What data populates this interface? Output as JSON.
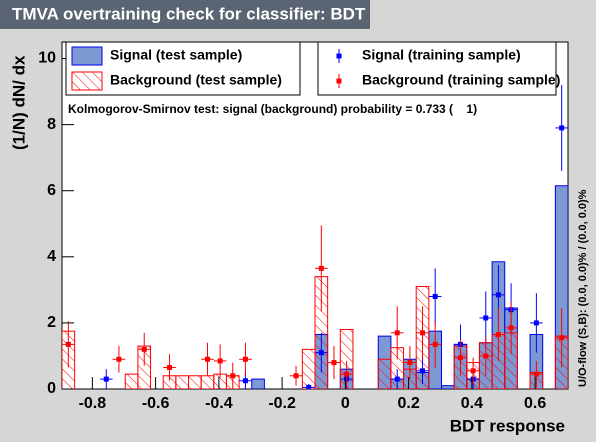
{
  "chart_data": {
    "type": "histogram",
    "title": "TMVA overtraining check for classifier: BDT",
    "x_label": "BDT response",
    "y_label": "(1/N) dN/ dx",
    "annotation": "Kolmogorov-Smirnov test: signal (background) probability = 0.733 (    1)",
    "side_note": "U/O-flow (S,B): (0.0, 0.0)% / (0.0, 0.0)%",
    "bins": [
      -0.896,
      -0.856,
      -0.816,
      -0.776,
      -0.736,
      -0.696,
      -0.656,
      -0.616,
      -0.576,
      -0.536,
      -0.496,
      -0.456,
      -0.416,
      -0.376,
      -0.336,
      -0.296,
      -0.256,
      -0.216,
      -0.176,
      -0.136,
      -0.096,
      -0.056,
      -0.016,
      0.024,
      0.064,
      0.104,
      0.144,
      0.184,
      0.224,
      0.264,
      0.304,
      0.344,
      0.384,
      0.424,
      0.464,
      0.504,
      0.544,
      0.584,
      0.624,
      0.664,
      0.704
    ],
    "xlim": [
      -0.896,
      0.704
    ],
    "ylim": [
      0,
      10.5
    ],
    "xticks": [
      -0.8,
      -0.6,
      -0.4,
      -0.2,
      0,
      0.2,
      0.4,
      0.6
    ],
    "yticks": [
      0,
      2,
      4,
      6,
      8,
      10
    ],
    "series": [
      {
        "name": "Signal (test sample)",
        "style": "filled",
        "color": "#0000ee",
        "fill": "#7d99d1",
        "values": [
          0,
          0,
          0,
          0,
          0,
          0,
          0,
          0,
          0,
          0,
          0,
          0,
          0,
          0,
          0,
          0.3,
          0,
          0,
          0,
          0,
          1.65,
          0,
          0.6,
          0,
          0,
          1.6,
          0.3,
          0.9,
          0.5,
          1.75,
          0.1,
          1.35,
          0.3,
          1.4,
          3.85,
          2.45,
          0,
          1.65,
          0,
          6.15
        ]
      },
      {
        "name": "Background (test sample)",
        "style": "hatched",
        "color": "#ff0000",
        "values": [
          1.75,
          0,
          0,
          0,
          0,
          0.45,
          1.3,
          0,
          0.4,
          0.4,
          0.4,
          0.4,
          0.45,
          0.4,
          0,
          0,
          0,
          0,
          0,
          1.2,
          3.4,
          0,
          1.8,
          0,
          0,
          0.9,
          1.25,
          0.6,
          3.1,
          0,
          0,
          1.3,
          0.8,
          1.4,
          1.65,
          1.7,
          0,
          0.5,
          0,
          1.6
        ]
      },
      {
        "name": "Signal (training sample)",
        "style": "points",
        "color": "#0000ff",
        "values": [
          null,
          null,
          null,
          0.3,
          null,
          null,
          null,
          null,
          null,
          null,
          null,
          null,
          null,
          null,
          0.25,
          null,
          null,
          null,
          null,
          0.05,
          1.1,
          null,
          0.3,
          null,
          null,
          null,
          0.3,
          null,
          0.55,
          2.8,
          null,
          1.35,
          0.3,
          2.15,
          2.85,
          2.4,
          null,
          2.0,
          null,
          7.9
        ],
        "errors": [
          null,
          null,
          null,
          0.3,
          null,
          null,
          null,
          null,
          null,
          null,
          null,
          null,
          null,
          null,
          0.25,
          null,
          null,
          null,
          null,
          0.1,
          0.6,
          null,
          0.3,
          null,
          null,
          null,
          0.3,
          null,
          0.4,
          0.85,
          null,
          0.6,
          0.3,
          0.8,
          0.9,
          0.8,
          null,
          0.9,
          null,
          1.3
        ]
      },
      {
        "name": "Background (training sample)",
        "style": "points",
        "color": "#ff0000",
        "values": [
          1.35,
          null,
          null,
          null,
          0.9,
          null,
          1.2,
          null,
          0.65,
          null,
          null,
          0.9,
          0.85,
          0.4,
          0.9,
          null,
          null,
          null,
          0.4,
          null,
          3.65,
          0.8,
          0.45,
          null,
          null,
          null,
          1.7,
          0.8,
          1.7,
          1.35,
          null,
          0.95,
          0.55,
          1.0,
          1.65,
          1.85,
          null,
          0.45,
          null,
          1.55
        ],
        "errors": [
          0.7,
          null,
          null,
          null,
          0.4,
          null,
          0.5,
          null,
          0.4,
          null,
          null,
          0.5,
          0.5,
          0.4,
          0.5,
          null,
          null,
          null,
          0.3,
          null,
          1.3,
          0.5,
          0.4,
          null,
          null,
          null,
          0.8,
          0.5,
          0.8,
          0.7,
          null,
          0.55,
          0.4,
          0.6,
          0.8,
          0.8,
          null,
          0.4,
          null,
          0.9
        ]
      }
    ]
  }
}
